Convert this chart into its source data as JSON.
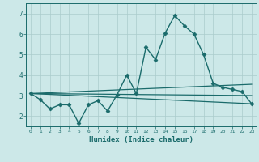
{
  "xlabel": "Humidex (Indice chaleur)",
  "ylabel": "",
  "xlim": [
    -0.5,
    23.5
  ],
  "ylim": [
    1.5,
    7.5
  ],
  "yticks": [
    2,
    3,
    4,
    5,
    6,
    7
  ],
  "xticks": [
    0,
    1,
    2,
    3,
    4,
    5,
    6,
    7,
    8,
    9,
    10,
    11,
    12,
    13,
    14,
    15,
    16,
    17,
    18,
    19,
    20,
    21,
    22,
    23
  ],
  "background_color": "#cce8e8",
  "line_color": "#1a6b6b",
  "grid_color": "#aacccc",
  "series": [
    {
      "x": [
        0,
        1,
        2,
        3,
        4,
        5,
        6,
        7,
        8,
        9,
        10,
        11,
        12,
        13,
        14,
        15,
        16,
        17,
        18,
        19,
        20,
        21,
        22,
        23
      ],
      "y": [
        3.1,
        2.8,
        2.35,
        2.55,
        2.55,
        1.65,
        2.55,
        2.75,
        2.25,
        3.05,
        4.0,
        3.1,
        5.35,
        4.75,
        6.05,
        6.9,
        6.4,
        6.0,
        5.0,
        3.6,
        3.4,
        3.3,
        3.2,
        2.6
      ],
      "marker": "D",
      "markersize": 2.5,
      "linewidth": 1.0
    },
    {
      "x": [
        0,
        23
      ],
      "y": [
        3.1,
        2.6
      ],
      "marker": null,
      "markersize": 0,
      "linewidth": 0.9
    },
    {
      "x": [
        0,
        23
      ],
      "y": [
        3.1,
        3.0
      ],
      "marker": null,
      "markersize": 0,
      "linewidth": 0.9
    },
    {
      "x": [
        0,
        23
      ],
      "y": [
        3.1,
        3.55
      ],
      "marker": null,
      "markersize": 0,
      "linewidth": 0.9
    }
  ]
}
